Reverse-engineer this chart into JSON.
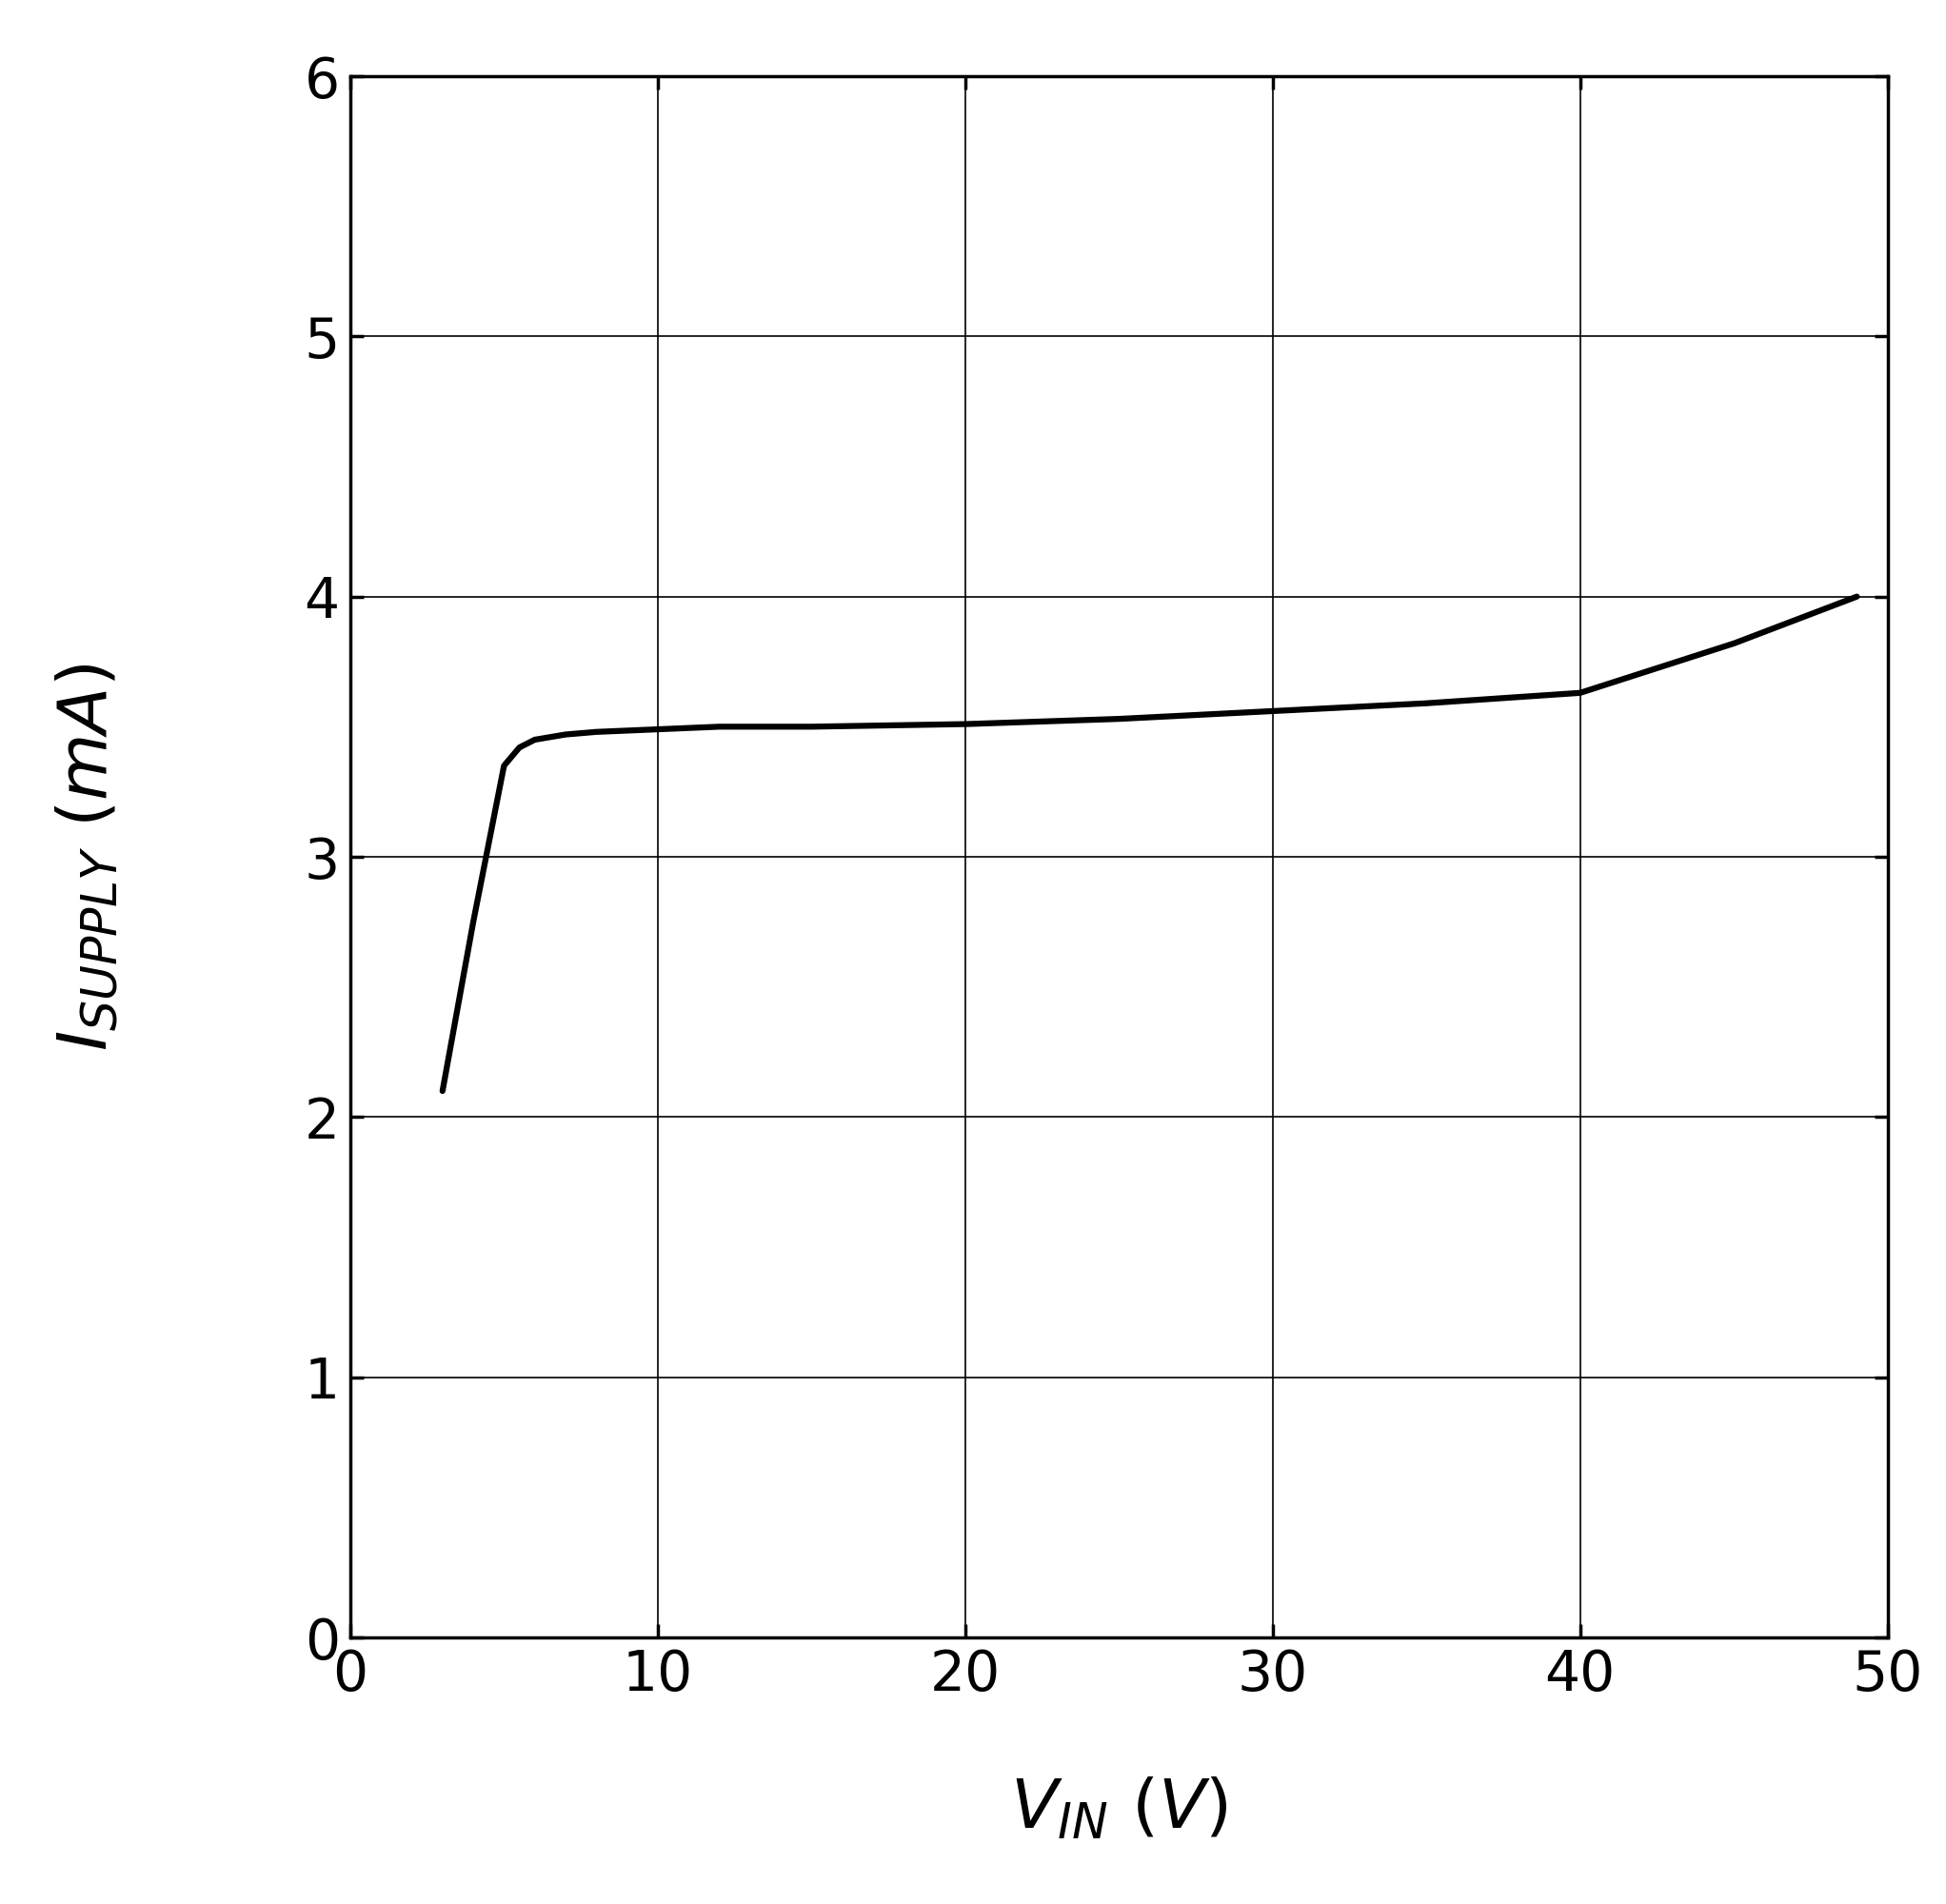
{
  "x": [
    3.0,
    4.0,
    5.0,
    5.5,
    6.0,
    7.0,
    8.0,
    10.0,
    12.0,
    15.0,
    20.0,
    25.0,
    30.0,
    35.0,
    40.0,
    45.0,
    49.0
  ],
  "y": [
    2.1,
    2.75,
    3.35,
    3.42,
    3.45,
    3.47,
    3.48,
    3.49,
    3.5,
    3.5,
    3.51,
    3.53,
    3.56,
    3.59,
    3.63,
    3.82,
    4.0
  ],
  "xlim": [
    0,
    50
  ],
  "ylim": [
    0,
    6
  ],
  "xticks": [
    0,
    10,
    20,
    30,
    40,
    50
  ],
  "yticks": [
    0,
    1,
    2,
    3,
    4,
    5,
    6
  ],
  "line_color": "#000000",
  "line_width": 4.5,
  "background_color": "#ffffff",
  "grid_color": "#000000",
  "grid_linewidth": 1.2,
  "axis_linewidth": 2.5,
  "tick_fontsize": 42,
  "label_fontsize": 52,
  "label_fontsize_sub": 38
}
